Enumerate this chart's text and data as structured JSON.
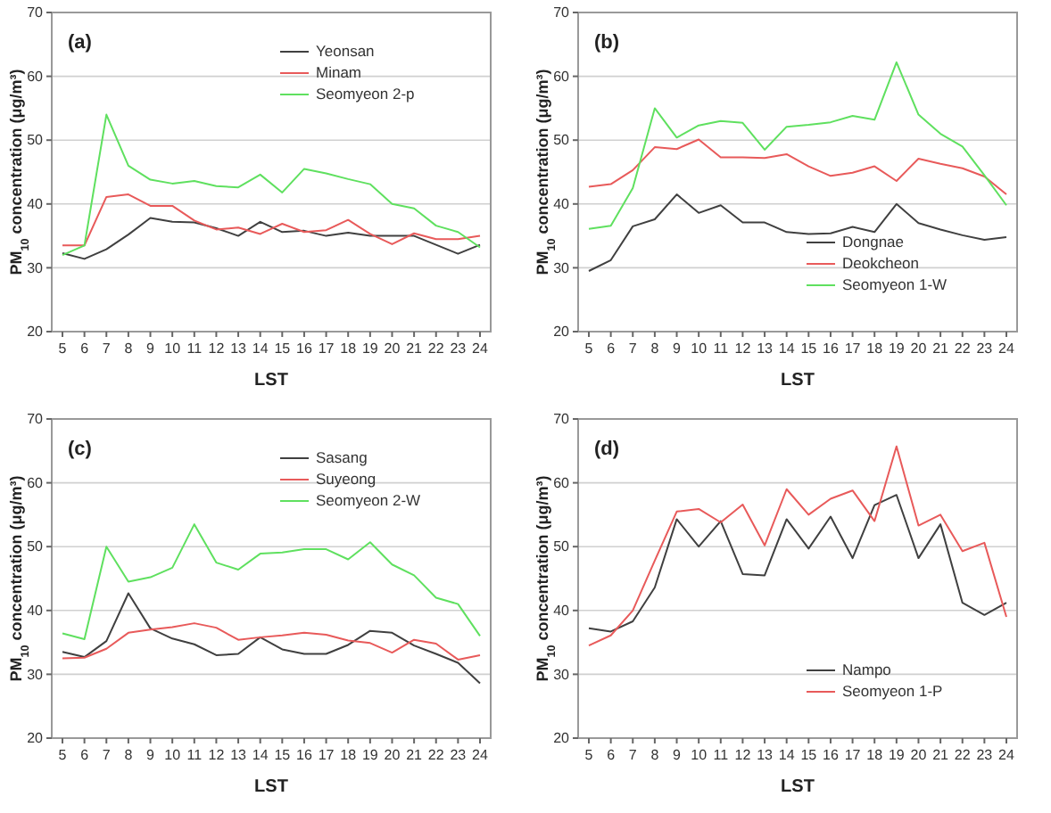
{
  "chart_data": [
    {
      "type": "line",
      "title": "(a)",
      "xlabel": "LST",
      "ylabel": "PM$_{10}$ concentration (μg/m³)",
      "categories": [
        "5",
        "6",
        "7",
        "8",
        "9",
        "10",
        "11",
        "12",
        "13",
        "14",
        "15",
        "16",
        "17",
        "18",
        "19",
        "20",
        "21",
        "22",
        "23",
        "24"
      ],
      "ylim": [
        20,
        70
      ],
      "yticks": [
        20,
        30,
        40,
        50,
        60,
        70
      ],
      "grid": "y",
      "legend": "top right",
      "series": [
        {
          "name": "Yeonsan",
          "color": "#404040",
          "values": [
            32.3,
            31.4,
            32.9,
            35.2,
            37.8,
            37.2,
            37.1,
            36.2,
            35.0,
            37.2,
            35.6,
            35.8,
            35.0,
            35.5,
            35.0,
            35.0,
            35.0,
            33.6,
            32.2,
            33.6
          ]
        },
        {
          "name": "Minam",
          "color": "#e85a5a",
          "values": [
            33.5,
            33.5,
            41.1,
            41.5,
            39.7,
            39.7,
            37.4,
            36.0,
            36.3,
            35.3,
            36.9,
            35.6,
            35.9,
            37.5,
            35.3,
            33.7,
            35.4,
            34.5,
            34.5,
            35.0
          ]
        },
        {
          "name": "Seomyeon 2-p",
          "color": "#5fe05f",
          "values": [
            32.0,
            33.5,
            54.0,
            46.0,
            43.8,
            43.2,
            43.6,
            42.8,
            42.6,
            44.6,
            41.8,
            45.5,
            44.8,
            43.9,
            43.1,
            40.0,
            39.3,
            36.6,
            35.6,
            33.2
          ]
        }
      ]
    },
    {
      "type": "line",
      "title": "(b)",
      "xlabel": "LST",
      "ylabel": "PM$_{10}$ concentration (μg/m³)",
      "categories": [
        "5",
        "6",
        "7",
        "8",
        "9",
        "10",
        "11",
        "12",
        "13",
        "14",
        "15",
        "16",
        "17",
        "18",
        "19",
        "20",
        "21",
        "22",
        "23",
        "24"
      ],
      "ylim": [
        20,
        70
      ],
      "yticks": [
        20,
        30,
        40,
        50,
        60,
        70
      ],
      "grid": "y",
      "legend": "bottom right",
      "series": [
        {
          "name": "Dongnae",
          "color": "#404040",
          "values": [
            29.5,
            31.2,
            36.5,
            37.6,
            41.5,
            38.6,
            39.8,
            37.1,
            37.1,
            35.6,
            35.3,
            35.4,
            36.4,
            35.6,
            40.0,
            37.0,
            36.0,
            35.1,
            34.4,
            34.8
          ]
        },
        {
          "name": "Deokcheon",
          "color": "#e85a5a",
          "values": [
            42.7,
            43.1,
            45.3,
            48.9,
            48.6,
            50.1,
            47.3,
            47.3,
            47.2,
            47.8,
            45.9,
            44.4,
            44.9,
            45.9,
            43.6,
            47.1,
            46.3,
            45.6,
            44.3,
            41.5
          ]
        },
        {
          "name": "Seomyeon 1-W",
          "color": "#5fe05f",
          "values": [
            36.1,
            36.6,
            42.5,
            55.0,
            50.4,
            52.3,
            53.0,
            52.7,
            48.5,
            52.1,
            52.4,
            52.8,
            53.8,
            53.2,
            62.2,
            54.0,
            51.0,
            49.0,
            44.5,
            39.8
          ]
        }
      ]
    },
    {
      "type": "line",
      "title": "(c)",
      "xlabel": "LST",
      "ylabel": "PM$_{10}$ concentration (μg/m³)",
      "categories": [
        "5",
        "6",
        "7",
        "8",
        "9",
        "10",
        "11",
        "12",
        "13",
        "14",
        "15",
        "16",
        "17",
        "18",
        "19",
        "20",
        "21",
        "22",
        "23",
        "24"
      ],
      "ylim": [
        20,
        70
      ],
      "yticks": [
        20,
        30,
        40,
        50,
        60,
        70
      ],
      "grid": "y",
      "legend": "top right",
      "series": [
        {
          "name": "Sasang",
          "color": "#404040",
          "values": [
            33.5,
            32.7,
            35.2,
            42.7,
            37.2,
            35.6,
            34.7,
            33.0,
            33.2,
            35.8,
            33.9,
            33.2,
            33.2,
            34.6,
            36.8,
            36.5,
            34.5,
            33.2,
            31.8,
            28.6
          ]
        },
        {
          "name": "Suyeong",
          "color": "#e85a5a",
          "values": [
            32.5,
            32.6,
            34.0,
            36.5,
            37.0,
            37.4,
            38.0,
            37.3,
            35.4,
            35.8,
            36.1,
            36.5,
            36.2,
            35.3,
            34.9,
            33.4,
            35.4,
            34.8,
            32.3,
            33.0
          ]
        },
        {
          "name": "Seomyeon 2-W",
          "color": "#5fe05f",
          "values": [
            36.4,
            35.5,
            50.0,
            44.5,
            45.2,
            46.7,
            53.5,
            47.5,
            46.4,
            48.9,
            49.1,
            49.6,
            49.6,
            48.0,
            50.7,
            47.2,
            45.5,
            42.0,
            41.0,
            36.0
          ]
        }
      ]
    },
    {
      "type": "line",
      "title": "(d)",
      "xlabel": "LST",
      "ylabel": "PM$_{10}$ concentration (μg/m³)",
      "categories": [
        "5",
        "6",
        "7",
        "8",
        "9",
        "10",
        "11",
        "12",
        "13",
        "14",
        "15",
        "16",
        "17",
        "18",
        "19",
        "20",
        "21",
        "22",
        "23",
        "24"
      ],
      "ylim": [
        20,
        70
      ],
      "yticks": [
        20,
        30,
        40,
        50,
        60,
        70
      ],
      "grid": "y",
      "legend": "bottom right",
      "series": [
        {
          "name": "Nampo",
          "color": "#404040",
          "values": [
            37.2,
            36.7,
            38.3,
            43.6,
            54.3,
            50.0,
            54.0,
            45.7,
            45.5,
            54.3,
            49.7,
            54.7,
            48.2,
            56.5,
            58.1,
            48.2,
            53.5,
            41.2,
            39.3,
            41.2
          ]
        },
        {
          "name": "Seomyeon 1-P",
          "color": "#e85a5a",
          "values": [
            34.5,
            36.1,
            40.0,
            47.8,
            55.5,
            55.9,
            53.8,
            56.6,
            50.2,
            59.0,
            55.0,
            57.5,
            58.8,
            54.0,
            65.7,
            53.3,
            55.0,
            49.3,
            50.6,
            39.0
          ]
        }
      ]
    }
  ]
}
